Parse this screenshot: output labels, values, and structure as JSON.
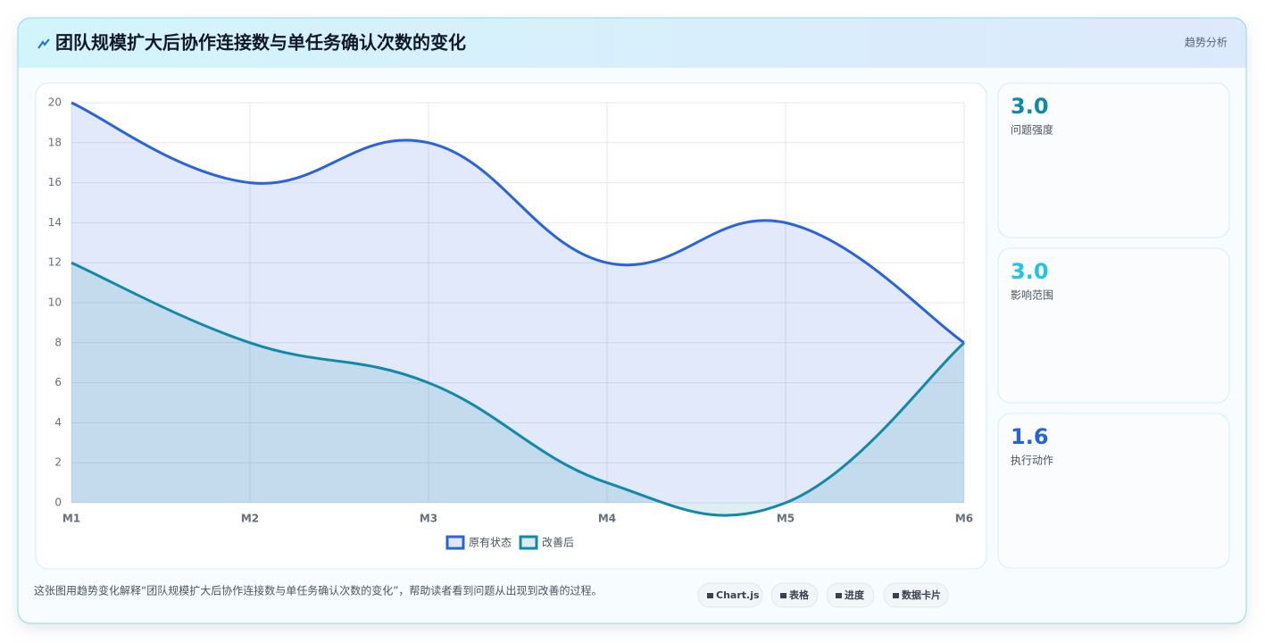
{
  "header": {
    "title": "团队规模扩大后协作连接数与单任务确认次数的变化",
    "badge": "趋势分析"
  },
  "chart_data": {
    "type": "area",
    "categories": [
      "M1",
      "M2",
      "M3",
      "M4",
      "M5",
      "M6"
    ],
    "series": [
      {
        "name": "原有状态",
        "color": "#2b63d9",
        "values": [
          20,
          16,
          18,
          12,
          14,
          8
        ]
      },
      {
        "name": "改善后",
        "color": "#1289a8",
        "values": [
          12,
          8,
          6,
          1,
          0,
          8
        ]
      }
    ],
    "ylim": [
      0,
      20
    ],
    "yticks": [
      0,
      2,
      4,
      6,
      8,
      10,
      12,
      14,
      16,
      18,
      20
    ],
    "grid": true,
    "legend": "bottom"
  },
  "stats": [
    {
      "value": "3.0",
      "label": "问题强度",
      "color": "#0e8aa8"
    },
    {
      "value": "3.0",
      "label": "影响范围",
      "color": "#22c5e0"
    },
    {
      "value": "1.6",
      "label": "执行动作",
      "color": "#2563d6"
    }
  ],
  "footer": {
    "text": "这张图用趋势变化解释“团队规模扩大后协作连接数与单任务确认次数的变化”，帮助读者看到问题从出现到改善的过程。",
    "buttons": [
      "Chart.js",
      "表格",
      "进度",
      "数据卡片"
    ]
  }
}
